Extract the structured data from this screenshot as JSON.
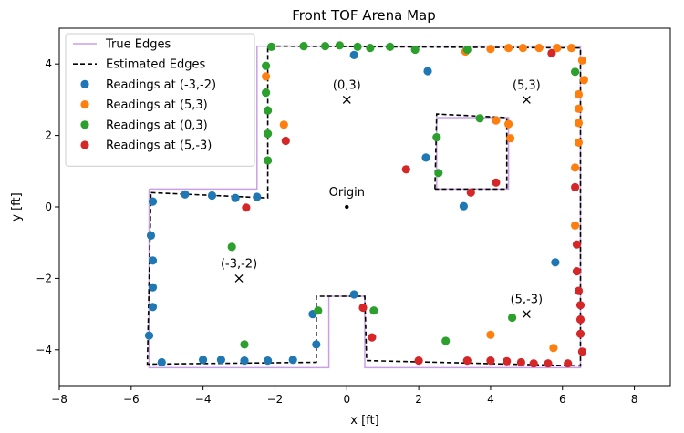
{
  "chart_data": {
    "type": "scatter",
    "title": "Front TOF Arena Map",
    "xlabel": "x [ft]",
    "ylabel": "y [ft]",
    "xlim": [
      -8,
      9
    ],
    "ylim": [
      -5,
      5
    ],
    "xticks": [
      -8,
      -6,
      -4,
      -2,
      0,
      2,
      4,
      6,
      8
    ],
    "yticks": [
      -4,
      -2,
      0,
      2,
      4
    ],
    "grid": false,
    "legend_position": "top-left",
    "lines": [
      {
        "name": "True Edges",
        "color": "#c9a0e6",
        "style": "solid",
        "segments": [
          [
            [
              -5.5,
              0.5
            ],
            [
              -2.5,
              0.5
            ],
            [
              -2.5,
              4.5
            ],
            [
              6.5,
              4.5
            ],
            [
              6.5,
              -4.5
            ],
            [
              0.5,
              -4.5
            ],
            [
              0.5,
              -2.5
            ],
            [
              -0.5,
              -2.5
            ],
            [
              -0.5,
              -4.5
            ],
            [
              -5.5,
              -4.5
            ],
            [
              -5.5,
              0.5
            ]
          ],
          [
            [
              2.5,
              0.5
            ],
            [
              2.5,
              2.5
            ],
            [
              4.5,
              2.5
            ],
            [
              4.5,
              0.5
            ],
            [
              2.5,
              0.5
            ]
          ]
        ]
      },
      {
        "name": "Estimated Edges",
        "color": "#000000",
        "style": "dashed",
        "segments": [
          [
            [
              -5.45,
              0.4
            ],
            [
              -2.2,
              0.25
            ],
            [
              -2.2,
              4.5
            ],
            [
              6.5,
              4.45
            ],
            [
              6.5,
              -4.45
            ],
            [
              0.55,
              -4.3
            ],
            [
              0.5,
              -2.5
            ],
            [
              -0.85,
              -2.5
            ],
            [
              -0.85,
              -4.35
            ],
            [
              -5.55,
              -4.4
            ],
            [
              -5.45,
              0.4
            ]
          ],
          [
            [
              2.45,
              0.5
            ],
            [
              2.5,
              2.6
            ],
            [
              4.45,
              2.5
            ],
            [
              4.45,
              0.5
            ],
            [
              2.45,
              0.5
            ]
          ]
        ]
      }
    ],
    "series": [
      {
        "name": "Readings at (-3,-2)",
        "color": "#1f77b4",
        "points": [
          [
            -5.4,
            0.15
          ],
          [
            -4.5,
            0.35
          ],
          [
            -3.75,
            0.32
          ],
          [
            -3.1,
            0.25
          ],
          [
            -2.5,
            0.28
          ],
          [
            -5.45,
            -0.8
          ],
          [
            -5.4,
            -1.5
          ],
          [
            -5.4,
            -2.25
          ],
          [
            -5.4,
            -2.8
          ],
          [
            -5.5,
            -3.6
          ],
          [
            -5.15,
            -4.35
          ],
          [
            -4.0,
            -4.28
          ],
          [
            -3.5,
            -4.28
          ],
          [
            -2.85,
            -4.3
          ],
          [
            -2.2,
            -4.3
          ],
          [
            -1.5,
            -4.28
          ],
          [
            -0.85,
            -3.85
          ],
          [
            -0.95,
            -3.0
          ],
          [
            0.2,
            -2.45
          ],
          [
            0.2,
            4.25
          ],
          [
            2.25,
            3.8
          ],
          [
            3.25,
            0.02
          ],
          [
            2.2,
            1.38
          ],
          [
            5.8,
            -1.55
          ]
        ]
      },
      {
        "name": "Readings at (5,3)",
        "color": "#ff7f0e",
        "points": [
          [
            -2.25,
            3.65
          ],
          [
            -1.75,
            2.3
          ],
          [
            3.3,
            4.35
          ],
          [
            4.0,
            4.42
          ],
          [
            4.5,
            4.45
          ],
          [
            4.9,
            4.45
          ],
          [
            5.35,
            4.45
          ],
          [
            5.85,
            4.45
          ],
          [
            6.25,
            4.45
          ],
          [
            6.55,
            4.1
          ],
          [
            6.6,
            3.55
          ],
          [
            6.45,
            3.15
          ],
          [
            6.45,
            2.75
          ],
          [
            6.45,
            2.35
          ],
          [
            6.45,
            1.8
          ],
          [
            6.35,
            1.1
          ],
          [
            4.5,
            2.32
          ],
          [
            4.15,
            2.42
          ],
          [
            4.55,
            1.92
          ],
          [
            6.35,
            -0.52
          ],
          [
            4.0,
            -3.58
          ],
          [
            5.75,
            -3.95
          ]
        ]
      },
      {
        "name": "Readings at (0,3)",
        "color": "#2ca02c",
        "points": [
          [
            -2.25,
            3.95
          ],
          [
            -2.25,
            3.2
          ],
          [
            -2.2,
            2.7
          ],
          [
            -2.2,
            2.05
          ],
          [
            -2.2,
            1.3
          ],
          [
            -2.1,
            4.48
          ],
          [
            -1.2,
            4.5
          ],
          [
            -0.6,
            4.5
          ],
          [
            -0.2,
            4.52
          ],
          [
            0.3,
            4.48
          ],
          [
            0.65,
            4.45
          ],
          [
            1.2,
            4.48
          ],
          [
            1.9,
            4.4
          ],
          [
            3.35,
            4.4
          ],
          [
            6.35,
            3.78
          ],
          [
            2.5,
            1.95
          ],
          [
            2.55,
            0.95
          ],
          [
            3.7,
            2.48
          ],
          [
            -3.2,
            -1.12
          ],
          [
            -0.8,
            -2.9
          ],
          [
            0.75,
            -2.9
          ],
          [
            -2.85,
            -3.85
          ],
          [
            2.75,
            -3.75
          ],
          [
            4.6,
            -3.1
          ]
        ]
      },
      {
        "name": "Readings at (5,-3)",
        "color": "#d62728",
        "points": [
          [
            -1.7,
            1.85
          ],
          [
            -2.8,
            -0.02
          ],
          [
            1.65,
            1.05
          ],
          [
            3.45,
            0.4
          ],
          [
            4.15,
            0.68
          ],
          [
            5.7,
            4.3
          ],
          [
            6.35,
            0.55
          ],
          [
            6.4,
            -1.05
          ],
          [
            6.4,
            -1.8
          ],
          [
            6.45,
            -2.35
          ],
          [
            6.5,
            -2.75
          ],
          [
            6.5,
            -3.15
          ],
          [
            6.5,
            -3.55
          ],
          [
            6.55,
            -4.05
          ],
          [
            6.15,
            -4.38
          ],
          [
            5.6,
            -4.38
          ],
          [
            5.2,
            -4.38
          ],
          [
            4.85,
            -4.35
          ],
          [
            4.45,
            -4.32
          ],
          [
            4.0,
            -4.3
          ],
          [
            3.35,
            -4.3
          ],
          [
            2.0,
            -4.3
          ],
          [
            0.45,
            -2.82
          ],
          [
            0.7,
            -3.65
          ]
        ]
      }
    ],
    "markers": [
      {
        "label": "(0,3)",
        "x": 0,
        "y": 3,
        "symbol": "x"
      },
      {
        "label": "(5,3)",
        "x": 5,
        "y": 3,
        "symbol": "x"
      },
      {
        "label": "(-3,-2)",
        "x": -3,
        "y": -2,
        "symbol": "x"
      },
      {
        "label": "(5,-3)",
        "x": 5,
        "y": -3,
        "symbol": "x"
      },
      {
        "label": "Origin",
        "x": 0,
        "y": 0,
        "symbol": "dot"
      }
    ]
  }
}
